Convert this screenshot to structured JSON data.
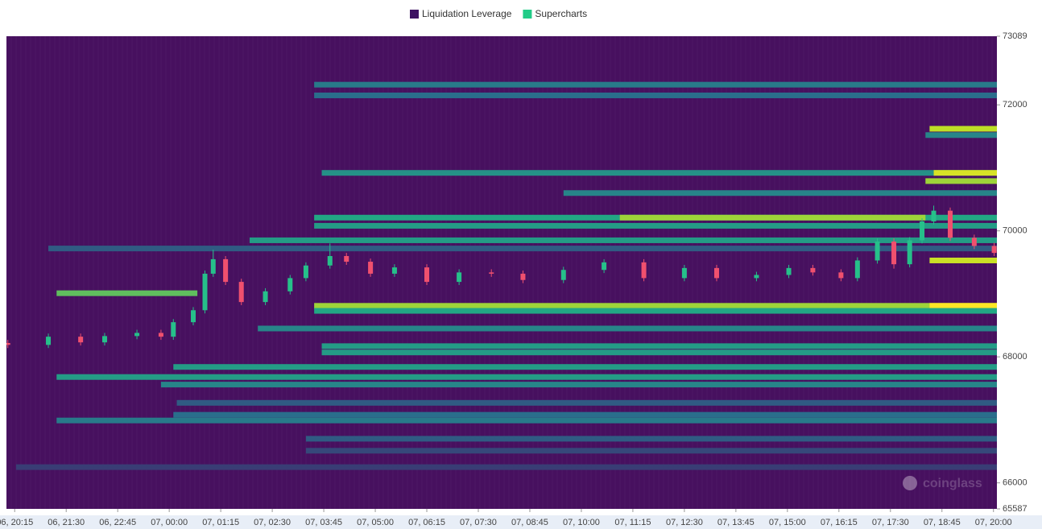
{
  "chart_data": {
    "type": "heatmap",
    "legend": [
      {
        "name": "Liquidation Leverage",
        "color": "#3d1263"
      },
      {
        "name": "Supercharts",
        "color": "#22cc88"
      }
    ],
    "watermark": "coinglass",
    "background": "#47105f",
    "colormap": [
      "#47105f",
      "#2a6e8c",
      "#22a884",
      "#bddf26",
      "#fde725"
    ],
    "xlim": [
      1203,
      2645
    ],
    "xticks": [
      {
        "value": 1215,
        "label": "06, 20:15"
      },
      {
        "value": 1290,
        "label": "06, 21:30"
      },
      {
        "value": 1365,
        "label": "06, 22:45"
      },
      {
        "value": 1440,
        "label": "07, 00:00"
      },
      {
        "value": 1515,
        "label": "07, 01:15"
      },
      {
        "value": 1590,
        "label": "07, 02:30"
      },
      {
        "value": 1665,
        "label": "07, 03:45"
      },
      {
        "value": 1740,
        "label": "07, 05:00"
      },
      {
        "value": 1815,
        "label": "07, 06:15"
      },
      {
        "value": 1890,
        "label": "07, 07:30"
      },
      {
        "value": 1965,
        "label": "07, 08:45"
      },
      {
        "value": 2040,
        "label": "07, 10:00"
      },
      {
        "value": 2115,
        "label": "07, 11:15"
      },
      {
        "value": 2190,
        "label": "07, 12:30"
      },
      {
        "value": 2265,
        "label": "07, 13:45"
      },
      {
        "value": 2340,
        "label": "07, 15:00"
      },
      {
        "value": 2415,
        "label": "07, 16:15"
      },
      {
        "value": 2490,
        "label": "07, 17:30"
      },
      {
        "value": 2565,
        "label": "07, 18:45"
      },
      {
        "value": 2640,
        "label": "07, 20:00"
      }
    ],
    "ylim": [
      65587,
      73089
    ],
    "yticks": [
      65587,
      66000,
      68000,
      70000,
      72000,
      73089
    ],
    "bands": [
      {
        "y": 72320,
        "x0": 1651,
        "x1": 2645,
        "level": 0.3
      },
      {
        "y": 72150,
        "x0": 1651,
        "x1": 2645,
        "level": 0.25
      },
      {
        "y": 71620,
        "x0": 2547,
        "x1": 2645,
        "level": 0.75
      },
      {
        "y": 71520,
        "x0": 2541,
        "x1": 2645,
        "level": 0.35
      },
      {
        "y": 70920,
        "x0": 1662,
        "x1": 2645,
        "level": 0.4
      },
      {
        "y": 70920,
        "x0": 2553,
        "x1": 2645,
        "level": 0.85
      },
      {
        "y": 70790,
        "x0": 2541,
        "x1": 2645,
        "level": 0.7
      },
      {
        "y": 70600,
        "x0": 2014,
        "x1": 2645,
        "level": 0.35
      },
      {
        "y": 70210,
        "x0": 1651,
        "x1": 2645,
        "level": 0.5
      },
      {
        "y": 70210,
        "x0": 2096,
        "x1": 2541,
        "level": 0.7
      },
      {
        "y": 70080,
        "x0": 1651,
        "x1": 2645,
        "level": 0.45
      },
      {
        "y": 69850,
        "x0": 1557,
        "x1": 2645,
        "level": 0.45
      },
      {
        "y": 69720,
        "x0": 1264,
        "x1": 2645,
        "level": 0.2
      },
      {
        "y": 69530,
        "x0": 2547,
        "x1": 2645,
        "level": 0.8
      },
      {
        "y": 69010,
        "x0": 1276,
        "x1": 1481,
        "level": 0.6
      },
      {
        "y": 68810,
        "x0": 1651,
        "x1": 2645,
        "level": 0.7
      },
      {
        "y": 68810,
        "x0": 2547,
        "x1": 2645,
        "level": 1.0
      },
      {
        "y": 68730,
        "x0": 1651,
        "x1": 2645,
        "level": 0.5
      },
      {
        "y": 68450,
        "x0": 1569,
        "x1": 2645,
        "level": 0.35
      },
      {
        "y": 68170,
        "x0": 1662,
        "x1": 2645,
        "level": 0.45
      },
      {
        "y": 68070,
        "x0": 1662,
        "x1": 2645,
        "level": 0.45
      },
      {
        "y": 67840,
        "x0": 1446,
        "x1": 2645,
        "level": 0.45
      },
      {
        "y": 67680,
        "x0": 1276,
        "x1": 2645,
        "level": 0.45
      },
      {
        "y": 67560,
        "x0": 1428,
        "x1": 2645,
        "level": 0.35
      },
      {
        "y": 67270,
        "x0": 1451,
        "x1": 2645,
        "level": 0.2
      },
      {
        "y": 67080,
        "x0": 1446,
        "x1": 2645,
        "level": 0.25
      },
      {
        "y": 66990,
        "x0": 1276,
        "x1": 2645,
        "level": 0.3
      },
      {
        "y": 66700,
        "x0": 1639,
        "x1": 2645,
        "level": 0.2
      },
      {
        "y": 66510,
        "x0": 1639,
        "x1": 2645,
        "level": 0.15
      },
      {
        "y": 66250,
        "x0": 1217,
        "x1": 2645,
        "level": 0.12
      }
    ],
    "candles": {
      "up_color": "#26c08a",
      "down_color": "#f0506e",
      "x": [
        1205,
        1264,
        1311,
        1346,
        1393,
        1428,
        1446,
        1475,
        1492,
        1504,
        1522,
        1545,
        1580,
        1616,
        1639,
        1674,
        1698,
        1733,
        1768,
        1815,
        1862,
        1909,
        1955,
        2014,
        2073,
        2131,
        2190,
        2237,
        2295,
        2342,
        2377,
        2418,
        2442,
        2471,
        2495,
        2518,
        2536,
        2553,
        2577,
        2612,
        2641
      ],
      "open": [
        68220,
        68190,
        68320,
        68230,
        68330,
        68380,
        68320,
        68550,
        68740,
        69320,
        69550,
        69190,
        68870,
        69040,
        69250,
        69450,
        69600,
        69510,
        69320,
        69420,
        69190,
        69340,
        69320,
        69220,
        69380,
        69500,
        69250,
        69410,
        69250,
        69300,
        69410,
        69340,
        69250,
        69530,
        69830,
        69470,
        69850,
        70150,
        70320,
        69890,
        69760
      ],
      "high": [
        68270,
        68370,
        68370,
        68380,
        68430,
        68430,
        68600,
        68790,
        69370,
        69700,
        69600,
        69240,
        69090,
        69300,
        69500,
        69800,
        69650,
        69560,
        69470,
        69470,
        69390,
        69390,
        69370,
        69430,
        69550,
        69550,
        69460,
        69460,
        69350,
        69460,
        69460,
        69390,
        69580,
        69880,
        69880,
        69900,
        70200,
        70400,
        70370,
        69940,
        69810
      ],
      "low": [
        68140,
        68140,
        68180,
        68180,
        68280,
        68270,
        68270,
        68500,
        68690,
        69270,
        69140,
        68820,
        68820,
        68990,
        69200,
        69400,
        69460,
        69270,
        69270,
        69140,
        69140,
        69270,
        69170,
        69170,
        69330,
        69200,
        69200,
        69200,
        69200,
        69250,
        69290,
        69200,
        69200,
        69480,
        69400,
        69420,
        69800,
        70100,
        69840,
        69710,
        69600
      ],
      "close": [
        68190,
        68320,
        68230,
        68330,
        68380,
        68320,
        68550,
        68740,
        69320,
        69550,
        69190,
        68870,
        69040,
        69250,
        69450,
        69600,
        69510,
        69320,
        69420,
        69190,
        69340,
        69320,
        69220,
        69380,
        69500,
        69250,
        69410,
        69250,
        69300,
        69410,
        69340,
        69250,
        69530,
        69830,
        69470,
        69850,
        70150,
        70320,
        69890,
        69760,
        69650
      ]
    }
  }
}
